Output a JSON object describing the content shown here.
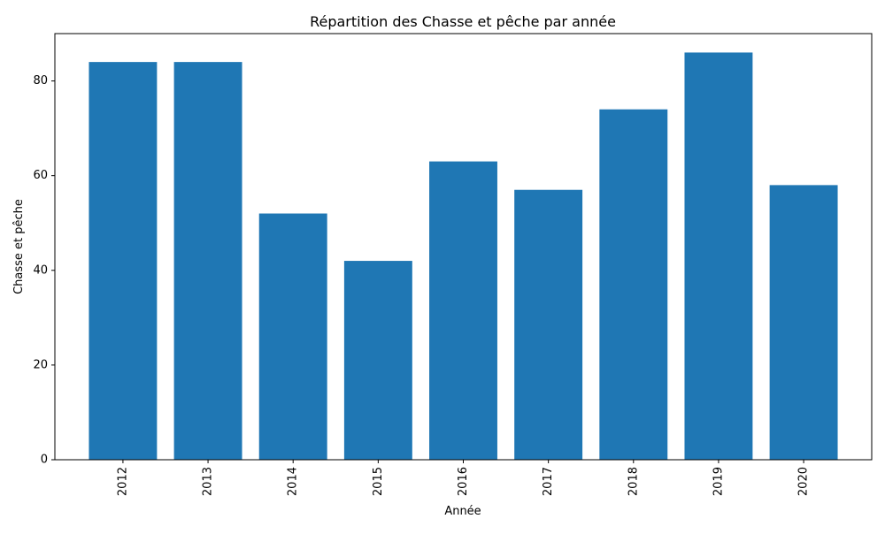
{
  "chart_data": {
    "type": "bar",
    "title": "Répartition des Chasse et pêche par année",
    "xlabel": "Année",
    "ylabel": "Chasse et pêche",
    "categories": [
      "2012",
      "2013",
      "2014",
      "2015",
      "2016",
      "2017",
      "2018",
      "2019",
      "2020"
    ],
    "values": [
      84,
      84,
      52,
      42,
      63,
      57,
      74,
      86,
      58
    ],
    "ylim": [
      0,
      90
    ],
    "yticks": [
      0,
      20,
      40,
      60,
      80
    ],
    "ytick_labels": [
      "0",
      "20",
      "40",
      "60",
      "80"
    ],
    "grid": false,
    "legend": "none",
    "bar_color": "#1f77b4"
  }
}
